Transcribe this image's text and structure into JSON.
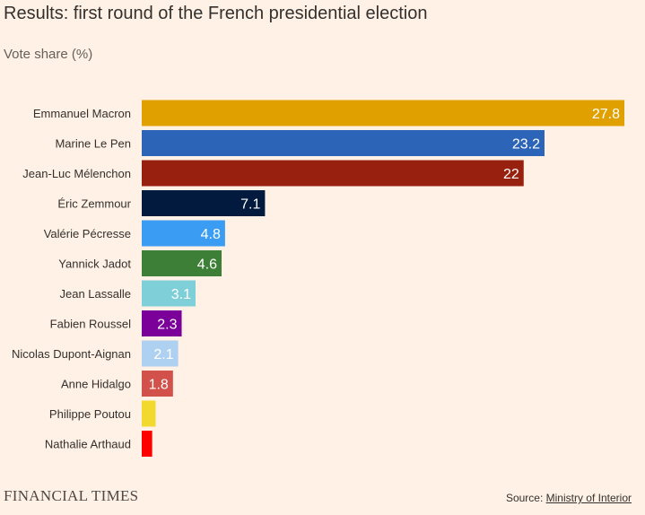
{
  "title": "Results: first round of the French presidential election",
  "subtitle": "Vote share (%)",
  "brand": "FINANCIAL TIMES",
  "source": {
    "prefix": "Source: ",
    "link_text": "Ministry of Interior"
  },
  "chart_data": {
    "type": "bar",
    "orientation": "horizontal",
    "title": "Results: first round of the French presidential election",
    "subtitle": "Vote share (%)",
    "xlim": [
      0,
      27.8
    ],
    "grid": false,
    "categories": [
      "Emmanuel Macron",
      "Marine Le Pen",
      "Jean-Luc Mélenchon",
      "Éric Zemmour",
      "Valérie Pécresse",
      "Yannick Jadot",
      "Jean Lassalle",
      "Fabien Roussel",
      "Nicolas Dupont-Aignan",
      "Anne Hidalgo",
      "Philippe Poutou",
      "Nathalie Arthaud"
    ],
    "values": [
      27.8,
      23.2,
      22,
      7.1,
      4.8,
      4.6,
      3.1,
      2.3,
      2.1,
      1.8,
      0.8,
      0.6
    ],
    "value_labels": [
      "27.8",
      "23.2",
      "22",
      "7.1",
      "4.8",
      "4.6",
      "3.1",
      "2.3",
      "2.1",
      "1.8",
      "",
      ""
    ],
    "colors": [
      "#e0a100",
      "#2c64b8",
      "#98200e",
      "#011a3e",
      "#3a9cf3",
      "#3e7f38",
      "#7ecfd8",
      "#7a0099",
      "#afd1f1",
      "#d2514b",
      "#f3d92e",
      "#ff0000"
    ]
  }
}
